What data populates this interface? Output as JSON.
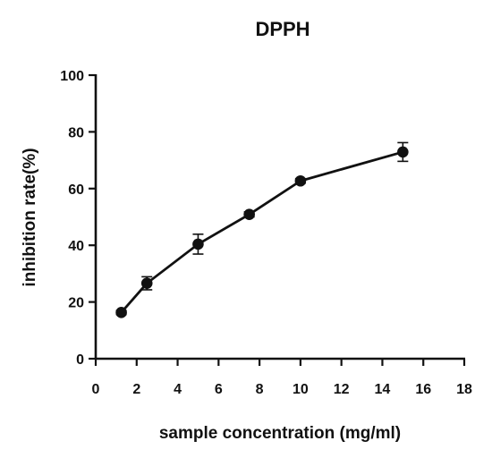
{
  "chart_data": {
    "type": "line",
    "title": "DPPH",
    "xlabel": "sample concentration (mg/ml)",
    "ylabel": "inhibition rate(%)",
    "xlim": [
      0,
      18
    ],
    "ylim": [
      0,
      100
    ],
    "xticks": [
      0,
      2,
      4,
      6,
      8,
      10,
      12,
      14,
      16,
      18
    ],
    "yticks": [
      0,
      20,
      40,
      60,
      80,
      100
    ],
    "grid": false,
    "marker": "circle",
    "series": [
      {
        "points": [
          {
            "x": 1.25,
            "y": 16.3,
            "err": 0.7
          },
          {
            "x": 2.5,
            "y": 26.6,
            "err": 2.3
          },
          {
            "x": 5,
            "y": 40.4,
            "err": 3.5
          },
          {
            "x": 7.5,
            "y": 50.9,
            "err": 0.9
          },
          {
            "x": 10,
            "y": 62.7,
            "err": 0.8
          },
          {
            "x": 15,
            "y": 72.9,
            "err": 3.3
          }
        ]
      }
    ],
    "colors": {
      "line": "#111111",
      "marker": "#111111",
      "axis": "#111111"
    }
  }
}
